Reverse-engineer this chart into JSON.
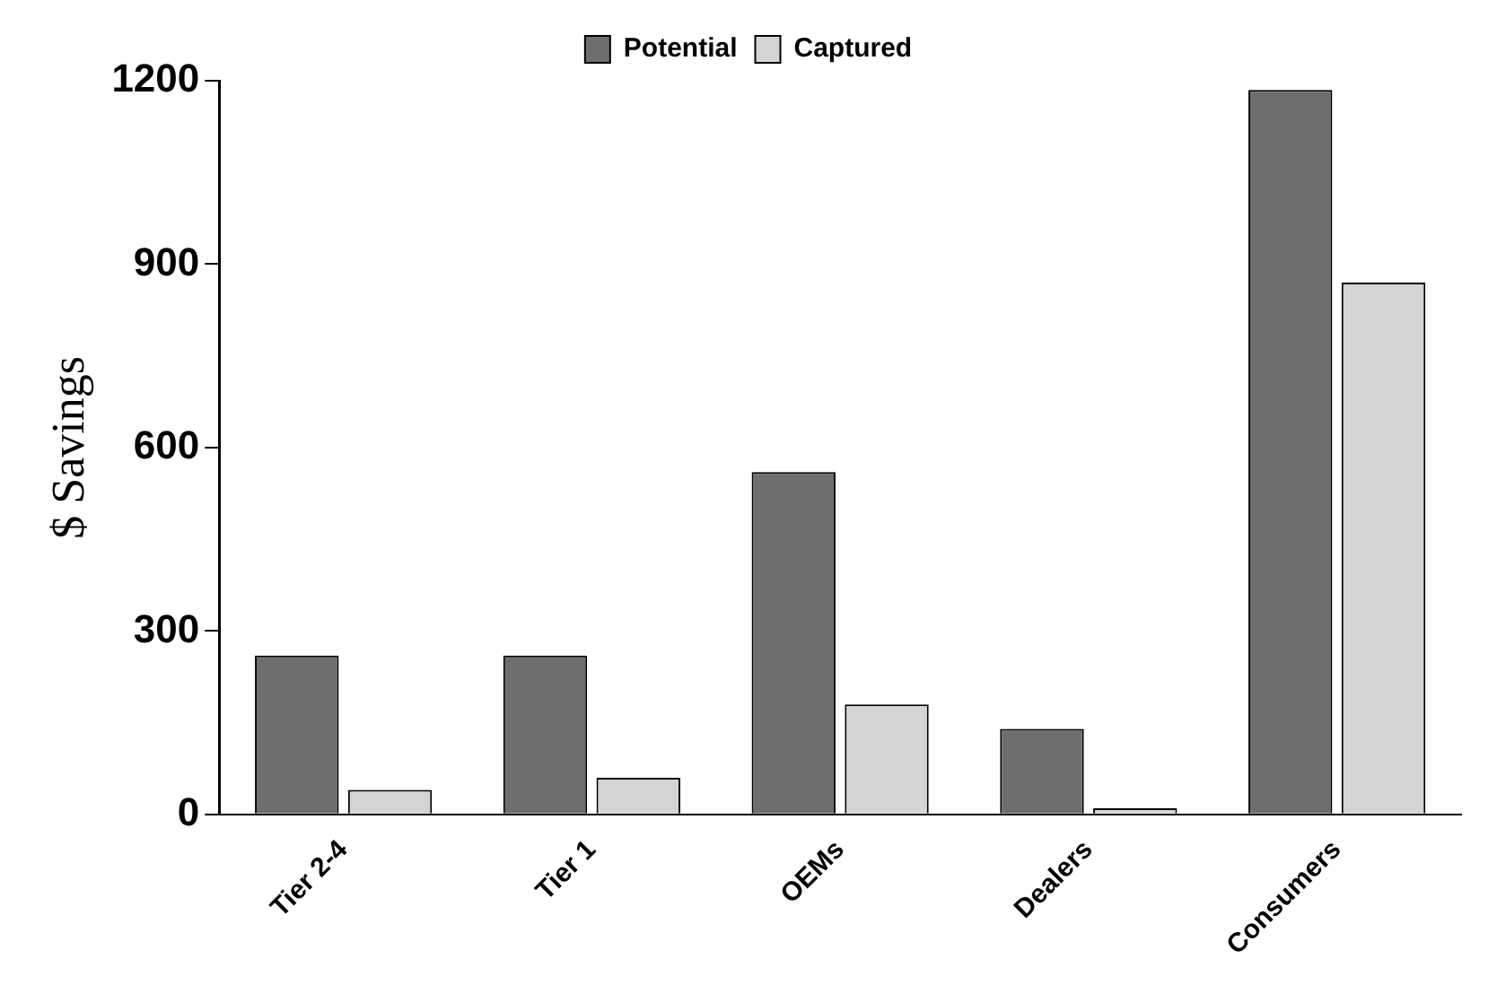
{
  "chart_data": {
    "type": "bar",
    "ylabel": "$ Savings",
    "categories": [
      "Tier 2-4",
      "Tier 1",
      "OEMs",
      "Dealers",
      "Consumers"
    ],
    "series": [
      {
        "name": "Potential",
        "color": "#6e6e6e",
        "values": [
          260,
          260,
          560,
          140,
          1185
        ]
      },
      {
        "name": "Captured",
        "color": "#d4d4d4",
        "values": [
          40,
          60,
          180,
          10,
          870
        ]
      }
    ],
    "ylim": [
      0,
      1200
    ],
    "yticks": [
      0,
      300,
      600,
      900,
      1200
    ],
    "grid": false,
    "legend": "top"
  }
}
